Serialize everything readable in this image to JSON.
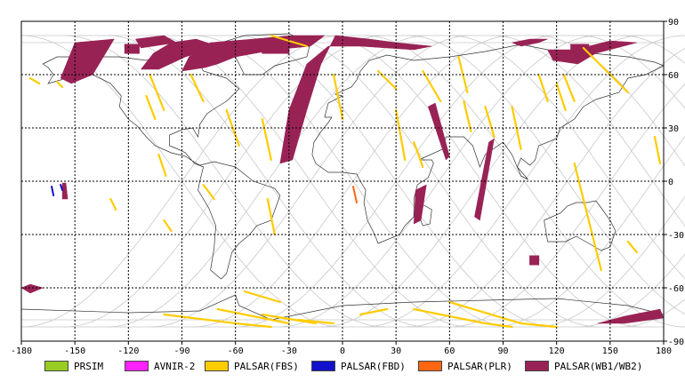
{
  "axes": {
    "x_ticks": [
      "-180",
      "-150",
      "-120",
      "-90",
      "-60",
      "-30",
      "0",
      "30",
      "60",
      "90",
      "120",
      "150",
      "180"
    ],
    "y_ticks": [
      "90",
      "60",
      "30",
      "0",
      "-30",
      "-60",
      "-90"
    ],
    "x_values": [
      -180,
      -150,
      -120,
      -90,
      -60,
      -30,
      0,
      30,
      60,
      90,
      120,
      150,
      180
    ],
    "y_values": [
      90,
      60,
      30,
      0,
      -30,
      -60,
      -90
    ]
  },
  "colors": {
    "PRSIM": "#99cc22",
    "AVNIR-2": "#ff22ff",
    "PALSAR(FBS)": "#ffcc00",
    "PALSAR(FBD)": "#1111cc",
    "PALSAR(PLR)": "#ff6611",
    "PALSAR(WB1/WB2)": "#992255"
  },
  "legend": [
    {
      "label": "PRSIM",
      "key": "PRSIM"
    },
    {
      "label": "AVNIR-2",
      "key": "AVNIR-2"
    },
    {
      "label": "PALSAR(FBS)",
      "key": "PALSAR(FBS)"
    },
    {
      "label": "PALSAR(FBD)",
      "key": "PALSAR(FBD)"
    },
    {
      "label": "PALSAR(PLR)",
      "key": "PALSAR(PLR)"
    },
    {
      "label": "PALSAR(WB1/WB2)",
      "key": "PALSAR(WB1/WB2)"
    }
  ],
  "wb_swaths": [
    [
      [
        -158,
        58
      ],
      [
        -150,
        78
      ],
      [
        -128,
        80
      ],
      [
        -140,
        60
      ],
      [
        -152,
        55
      ]
    ],
    [
      [
        -116,
        80
      ],
      [
        -100,
        82
      ],
      [
        -93,
        78
      ],
      [
        -113,
        75
      ]
    ],
    [
      [
        -96,
        78
      ],
      [
        -82,
        80
      ],
      [
        -70,
        76
      ],
      [
        -88,
        70
      ],
      [
        -103,
        63
      ],
      [
        -113,
        63
      ],
      [
        -106,
        72
      ]
    ],
    [
      [
        -74,
        78
      ],
      [
        -50,
        80
      ],
      [
        -28,
        82
      ],
      [
        -10,
        82
      ],
      [
        -18,
        76
      ],
      [
        -38,
        74
      ],
      [
        -60,
        70
      ],
      [
        -70,
        66
      ],
      [
        -77,
        64
      ],
      [
        -90,
        62
      ],
      [
        -86,
        70
      ]
    ],
    [
      [
        -4,
        82
      ],
      [
        15,
        80
      ],
      [
        30,
        78
      ],
      [
        50,
        76
      ],
      [
        40,
        74
      ],
      [
        10,
        76
      ],
      [
        -8,
        76
      ],
      [
        -20,
        66
      ],
      [
        -30,
        40
      ],
      [
        -35,
        10
      ],
      [
        -28,
        12
      ],
      [
        -20,
        40
      ],
      [
        -12,
        66
      ]
    ],
    [
      [
        95,
        78
      ],
      [
        105,
        80
      ],
      [
        115,
        80
      ],
      [
        110,
        78
      ],
      [
        100,
        76
      ]
    ],
    [
      [
        115,
        74
      ],
      [
        130,
        74
      ],
      [
        150,
        79
      ],
      [
        165,
        78
      ],
      [
        142,
        72
      ],
      [
        132,
        66
      ],
      [
        118,
        68
      ]
    ],
    [
      [
        58,
        12
      ],
      [
        60,
        14
      ],
      [
        52,
        44
      ],
      [
        48,
        42
      ]
    ],
    [
      [
        82,
        22
      ],
      [
        85,
        24
      ],
      [
        77,
        -22
      ],
      [
        74,
        -20
      ]
    ],
    [
      [
        40,
        -24
      ],
      [
        44,
        -22
      ],
      [
        47,
        -2
      ],
      [
        41,
        -5
      ]
    ],
    [
      [
        -157,
        -10
      ],
      [
        -154,
        -10
      ],
      [
        -155,
        -1
      ],
      [
        -157,
        -1
      ]
    ],
    [
      [
        -175,
        -58
      ],
      [
        -168,
        -60
      ],
      [
        -175,
        -63
      ],
      [
        -180,
        -60
      ]
    ],
    [
      [
        143,
        -80
      ],
      [
        158,
        -76
      ],
      [
        178,
        -72
      ],
      [
        180,
        -77
      ],
      [
        158,
        -80
      ]
    ]
  ],
  "wb_blocks": [
    [
      [
        -122,
        72
      ],
      [
        -114,
        72
      ],
      [
        -114,
        77
      ],
      [
        -122,
        77
      ]
    ],
    [
      [
        -45,
        72
      ],
      [
        -30,
        72
      ],
      [
        -30,
        78
      ],
      [
        -45,
        78
      ]
    ],
    [
      [
        105,
        -42
      ],
      [
        110,
        -42
      ],
      [
        110,
        -47
      ],
      [
        105,
        -47
      ]
    ],
    [
      [
        128,
        72
      ],
      [
        138,
        72
      ],
      [
        138,
        77
      ],
      [
        128,
        77
      ]
    ]
  ],
  "fbs_tracks": [
    [
      [
        -175,
        58
      ],
      [
        -170,
        55
      ]
    ],
    [
      [
        -160,
        56
      ],
      [
        -157,
        53
      ]
    ],
    [
      [
        -130,
        -10
      ],
      [
        -127,
        -16
      ]
    ],
    [
      [
        -110,
        48
      ],
      [
        -105,
        35
      ]
    ],
    [
      [
        -108,
        60
      ],
      [
        -100,
        40
      ]
    ],
    [
      [
        -103,
        15
      ],
      [
        -99,
        3
      ]
    ],
    [
      [
        -100,
        -22
      ],
      [
        -96,
        -28
      ]
    ],
    [
      [
        -85,
        60
      ],
      [
        -78,
        45
      ]
    ],
    [
      [
        -78,
        -2
      ],
      [
        -72,
        -10
      ]
    ],
    [
      [
        -65,
        40
      ],
      [
        -58,
        20
      ]
    ],
    [
      [
        -45,
        35
      ],
      [
        -40,
        12
      ]
    ],
    [
      [
        -42,
        -10
      ],
      [
        -38,
        -30
      ]
    ],
    [
      [
        -40,
        82
      ],
      [
        -20,
        76
      ]
    ],
    [
      [
        -5,
        60
      ],
      [
        0,
        35
      ]
    ],
    [
      [
        20,
        62
      ],
      [
        30,
        52
      ]
    ],
    [
      [
        30,
        40
      ],
      [
        35,
        12
      ]
    ],
    [
      [
        40,
        22
      ],
      [
        45,
        8
      ]
    ],
    [
      [
        45,
        62
      ],
      [
        55,
        45
      ]
    ],
    [
      [
        65,
        70
      ],
      [
        70,
        50
      ]
    ],
    [
      [
        68,
        45
      ],
      [
        72,
        28
      ]
    ],
    [
      [
        80,
        42
      ],
      [
        85,
        25
      ]
    ],
    [
      [
        95,
        42
      ],
      [
        100,
        18
      ]
    ],
    [
      [
        110,
        60
      ],
      [
        115,
        45
      ]
    ],
    [
      [
        120,
        55
      ],
      [
        125,
        40
      ]
    ],
    [
      [
        124,
        60
      ],
      [
        130,
        45
      ]
    ],
    [
      [
        135,
        75
      ],
      [
        160,
        50
      ]
    ],
    [
      [
        130,
        10
      ],
      [
        145,
        -50
      ]
    ],
    [
      [
        160,
        -34
      ],
      [
        165,
        -40
      ]
    ],
    [
      [
        175,
        25
      ],
      [
        178,
        10
      ]
    ],
    [
      [
        -100,
        -75
      ],
      [
        -60,
        -80
      ],
      [
        -40,
        -82
      ]
    ],
    [
      [
        -70,
        -72
      ],
      [
        -30,
        -80
      ]
    ],
    [
      [
        -55,
        -62
      ],
      [
        -35,
        -68
      ]
    ],
    [
      [
        -45,
        -75
      ],
      [
        -15,
        -80
      ]
    ],
    [
      [
        -25,
        -78
      ],
      [
        -5,
        -80
      ]
    ],
    [
      [
        10,
        -75
      ],
      [
        25,
        -72
      ]
    ],
    [
      [
        40,
        -72
      ],
      [
        80,
        -80
      ],
      [
        95,
        -82
      ]
    ],
    [
      [
        60,
        -68
      ],
      [
        100,
        -80
      ],
      [
        120,
        -82
      ]
    ]
  ],
  "fbd_tracks": [
    [
      [
        -163,
        -3
      ],
      [
        -162,
        -8
      ]
    ],
    [
      [
        -158,
        -2
      ],
      [
        -157,
        -5
      ]
    ]
  ],
  "plr_tracks": [
    [
      [
        6,
        -3
      ],
      [
        8,
        -12
      ]
    ]
  ],
  "land": [
    [
      [
        -168,
        66
      ],
      [
        -160,
        70
      ],
      [
        -140,
        70
      ],
      [
        -125,
        70
      ],
      [
        -110,
        68
      ],
      [
        -95,
        72
      ],
      [
        -82,
        70
      ],
      [
        -78,
        62
      ],
      [
        -65,
        58
      ],
      [
        -58,
        52
      ],
      [
        -65,
        45
      ],
      [
        -70,
        42
      ],
      [
        -76,
        38
      ],
      [
        -80,
        32
      ],
      [
        -81,
        25
      ],
      [
        -84,
        30
      ],
      [
        -90,
        29
      ],
      [
        -97,
        26
      ],
      [
        -97,
        20
      ],
      [
        -92,
        18
      ],
      [
        -88,
        16
      ],
      [
        -83,
        10
      ],
      [
        -78,
        8
      ],
      [
        -80,
        0
      ],
      [
        -81,
        -5
      ],
      [
        -75,
        -15
      ],
      [
        -71,
        -25
      ],
      [
        -72,
        -38
      ],
      [
        -74,
        -50
      ],
      [
        -68,
        -55
      ],
      [
        -65,
        -52
      ],
      [
        -62,
        -40
      ],
      [
        -58,
        -35
      ],
      [
        -52,
        -30
      ],
      [
        -48,
        -25
      ],
      [
        -40,
        -22
      ],
      [
        -35,
        -8
      ],
      [
        -38,
        -4
      ],
      [
        -50,
        0
      ],
      [
        -60,
        8
      ],
      [
        -72,
        11
      ],
      [
        -80,
        9
      ],
      [
        -85,
        12
      ],
      [
        -88,
        14
      ],
      [
        -96,
        16
      ],
      [
        -105,
        20
      ],
      [
        -110,
        25
      ],
      [
        -115,
        31
      ],
      [
        -120,
        35
      ],
      [
        -125,
        42
      ],
      [
        -124,
        48
      ],
      [
        -130,
        55
      ],
      [
        -140,
        60
      ],
      [
        -150,
        60
      ],
      [
        -158,
        57
      ],
      [
        -165,
        55
      ],
      [
        -162,
        60
      ],
      [
        -165,
        64
      ],
      [
        -168,
        66
      ]
    ],
    [
      [
        -55,
        60
      ],
      [
        -45,
        60
      ],
      [
        -38,
        65
      ],
      [
        -20,
        70
      ],
      [
        -18,
        78
      ],
      [
        -30,
        83
      ],
      [
        -55,
        82
      ],
      [
        -68,
        78
      ],
      [
        -72,
        76
      ],
      [
        -60,
        70
      ],
      [
        -55,
        60
      ]
    ],
    [
      [
        -10,
        36
      ],
      [
        -8,
        44
      ],
      [
        0,
        48
      ],
      [
        -4,
        49
      ],
      [
        5,
        53
      ],
      [
        8,
        57
      ],
      [
        10,
        62
      ],
      [
        15,
        68
      ],
      [
        25,
        71
      ],
      [
        40,
        68
      ],
      [
        60,
        70
      ],
      [
        80,
        73
      ],
      [
        100,
        77
      ],
      [
        120,
        73
      ],
      [
        140,
        72
      ],
      [
        160,
        70
      ],
      [
        175,
        67
      ],
      [
        180,
        65
      ],
      [
        170,
        60
      ],
      [
        160,
        58
      ],
      [
        155,
        50
      ],
      [
        142,
        46
      ],
      [
        135,
        42
      ],
      [
        130,
        35
      ],
      [
        122,
        30
      ],
      [
        120,
        24
      ],
      [
        110,
        20
      ],
      [
        108,
        12
      ],
      [
        105,
        9
      ],
      [
        100,
        13
      ],
      [
        98,
        8
      ],
      [
        104,
        1
      ],
      [
        100,
        3
      ],
      [
        95,
        15
      ],
      [
        90,
        22
      ],
      [
        80,
        15
      ],
      [
        77,
        8
      ],
      [
        73,
        20
      ],
      [
        68,
        25
      ],
      [
        58,
        25
      ],
      [
        56,
        18
      ],
      [
        45,
        13
      ],
      [
        43,
        12
      ],
      [
        50,
        12
      ],
      [
        51,
        10
      ],
      [
        48,
        2
      ],
      [
        42,
        -2
      ],
      [
        40,
        -10
      ],
      [
        40,
        -20
      ],
      [
        35,
        -25
      ],
      [
        32,
        -30
      ],
      [
        20,
        -35
      ],
      [
        18,
        -30
      ],
      [
        14,
        -22
      ],
      [
        12,
        -12
      ],
      [
        13,
        -5
      ],
      [
        10,
        0
      ],
      [
        8,
        4
      ],
      [
        0,
        5
      ],
      [
        -8,
        5
      ],
      [
        -15,
        10
      ],
      [
        -17,
        15
      ],
      [
        -16,
        22
      ],
      [
        -12,
        28
      ],
      [
        -8,
        33
      ],
      [
        -6,
        36
      ],
      [
        -10,
        36
      ]
    ],
    [
      [
        113,
        -22
      ],
      [
        115,
        -34
      ],
      [
        125,
        -34
      ],
      [
        131,
        -31
      ],
      [
        138,
        -35
      ],
      [
        145,
        -39
      ],
      [
        150,
        -37
      ],
      [
        153,
        -28
      ],
      [
        150,
        -22
      ],
      [
        145,
        -15
      ],
      [
        142,
        -11
      ],
      [
        137,
        -12
      ],
      [
        131,
        -12
      ],
      [
        126,
        -14
      ],
      [
        122,
        -18
      ],
      [
        113,
        -22
      ]
    ],
    [
      [
        43,
        -12
      ],
      [
        50,
        -16
      ],
      [
        49,
        -24
      ],
      [
        45,
        -25
      ],
      [
        43,
        -20
      ],
      [
        43,
        -12
      ]
    ],
    [
      [
        -180,
        -72
      ],
      [
        -120,
        -74
      ],
      [
        -80,
        -73
      ],
      [
        -60,
        -64
      ],
      [
        -58,
        -70
      ],
      [
        -40,
        -78
      ],
      [
        0,
        -70
      ],
      [
        40,
        -68
      ],
      [
        80,
        -67
      ],
      [
        120,
        -66
      ],
      [
        160,
        -70
      ],
      [
        180,
        -75
      ]
    ]
  ]
}
